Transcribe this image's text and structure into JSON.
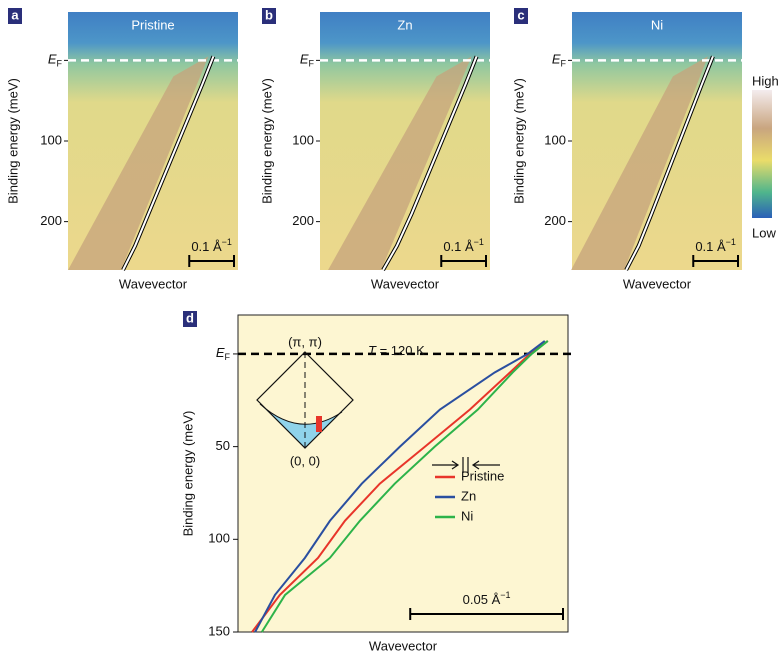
{
  "chart_data": [
    {
      "type": "intensity-map",
      "panel": "a",
      "title": "Pristine",
      "xlabel": "Wavevector",
      "ylabel": "Binding energy (meV)",
      "xlim": [
        0,
        0.38
      ],
      "ylim": [
        260,
        -60
      ],
      "yticks": [
        {
          "value": 0,
          "label": "E",
          "subscript": "F"
        },
        100,
        200
      ],
      "scalebar": {
        "value": 0.1,
        "label": "0.1 Å",
        "superscript": "−1"
      },
      "x": [
        0.325,
        0.3,
        0.27,
        0.24,
        0.21,
        0.18,
        0.15,
        0.123
      ],
      "values": [
        -5,
        30,
        70,
        110,
        150,
        190,
        230,
        260
      ],
      "color": "#ffffff"
    },
    {
      "type": "intensity-map",
      "panel": "b",
      "title": "Zn",
      "xlabel": "Wavevector",
      "ylabel": "Binding energy (meV)",
      "xlim": [
        0,
        0.38
      ],
      "ylim": [
        260,
        -60
      ],
      "yticks": [
        {
          "value": 0,
          "label": "E",
          "subscript": "F"
        },
        100,
        200
      ],
      "scalebar": {
        "value": 0.1,
        "label": "0.1 Å",
        "superscript": "−1"
      },
      "x": [
        0.35,
        0.325,
        0.295,
        0.265,
        0.235,
        0.205,
        0.172,
        0.141
      ],
      "values": [
        -5,
        30,
        70,
        110,
        150,
        190,
        230,
        260
      ],
      "color": "#ffffff"
    },
    {
      "type": "intensity-map",
      "panel": "c",
      "title": "Ni",
      "xlabel": "Wavevector",
      "ylabel": "Binding energy (meV)",
      "xlim": [
        0,
        0.38
      ],
      "ylim": [
        260,
        -60
      ],
      "yticks": [
        {
          "value": 0,
          "label": "E",
          "subscript": "F"
        },
        100,
        200
      ],
      "scalebar": {
        "value": 0.1,
        "label": "0.1 Å",
        "superscript": "−1"
      },
      "x": [
        0.315,
        0.29,
        0.262,
        0.234,
        0.206,
        0.178,
        0.149,
        0.121
      ],
      "values": [
        -5,
        30,
        70,
        110,
        150,
        190,
        230,
        260
      ],
      "color": "#ffffff",
      "colorbar": {
        "high": "High",
        "low": "Low"
      }
    },
    {
      "type": "line",
      "panel": "d",
      "xlabel": "Wavevector",
      "ylabel": "Binding energy (meV)",
      "xlim": [
        0,
        0.108
      ],
      "ylim": [
        150,
        -21
      ],
      "yticks": [
        {
          "value": 0,
          "label": "E",
          "subscript": "F"
        },
        50,
        100,
        150
      ],
      "scalebar": {
        "value": 0.05,
        "label": "0.05 Å",
        "superscript": "−1"
      },
      "annotation": {
        "italic": "T",
        "text": " = 120 K"
      },
      "inset": {
        "top": "(π, π)",
        "bottom": "(0, 0)"
      },
      "legend": "right",
      "series": [
        {
          "name": "Pristine",
          "color": "#e8352a",
          "x": [
            0.0046,
            0.0137,
            0.0262,
            0.035,
            0.0464,
            0.0612,
            0.0759,
            0.089,
            0.0955,
            0.1014
          ],
          "values": [
            150,
            130,
            110,
            90,
            70,
            50,
            30,
            10,
            0,
            -7
          ]
        },
        {
          "name": "Zn",
          "color": "#2a4fa0",
          "x": [
            0.0056,
            0.0121,
            0.0219,
            0.0301,
            0.0405,
            0.053,
            0.0661,
            0.084,
            0.0948,
            0.1004
          ],
          "values": [
            150,
            130,
            110,
            90,
            70,
            50,
            30,
            10,
            0,
            -7
          ]
        },
        {
          "name": "Ni",
          "color": "#2db34a",
          "x": [
            0.0078,
            0.0154,
            0.0301,
            0.0399,
            0.0513,
            0.0644,
            0.0785,
            0.0899,
            0.0961,
            0.1014
          ],
          "values": [
            150,
            130,
            110,
            90,
            70,
            50,
            30,
            10,
            0,
            -7
          ]
        }
      ]
    }
  ]
}
